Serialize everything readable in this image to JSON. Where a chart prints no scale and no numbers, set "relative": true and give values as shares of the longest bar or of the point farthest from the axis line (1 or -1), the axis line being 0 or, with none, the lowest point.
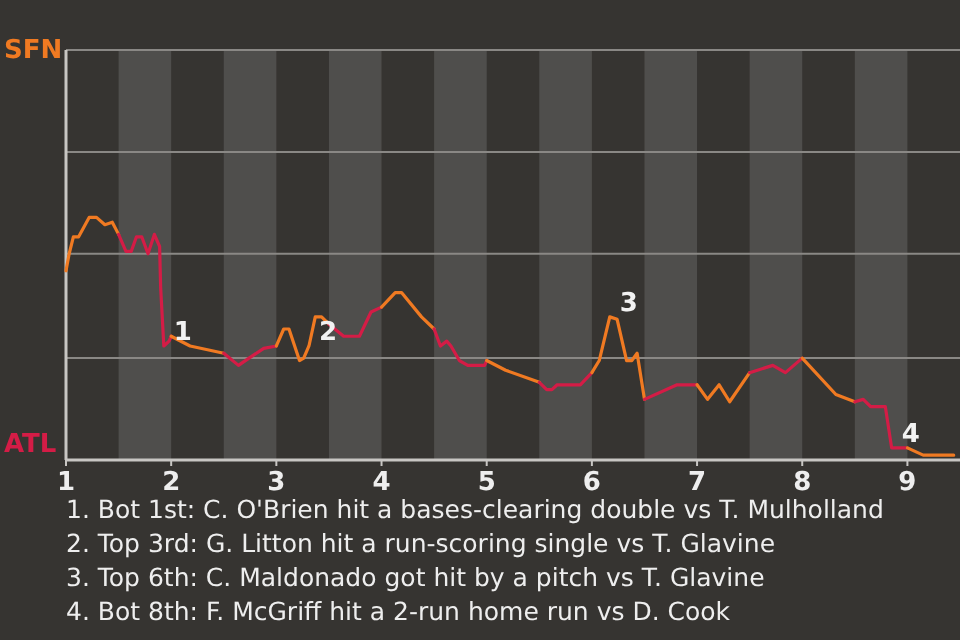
{
  "chart_data": {
    "type": "line",
    "relative": true,
    "xlim": [
      1,
      9.5
    ],
    "xticks": [
      1,
      2,
      3,
      4,
      5,
      6,
      7,
      8,
      9
    ],
    "marker": "none",
    "line_style": "solid",
    "ref_lines": [
      {
        "axis": "y",
        "value": 0.42,
        "color": "#8a8885"
      },
      {
        "axis": "y",
        "value": 0.85,
        "color": "#8a8885"
      },
      {
        "axis": "y",
        "value": 1.27,
        "color": "#8a8885"
      },
      {
        "axis": "y",
        "value": 1.69,
        "color": "#8a8885"
      }
    ],
    "bands": [
      {
        "axis": "x",
        "from": 1.5,
        "to": 2,
        "color": "#4f4e4c"
      },
      {
        "axis": "x",
        "from": 2.5,
        "to": 3,
        "color": "#4f4e4c"
      },
      {
        "axis": "x",
        "from": 3.5,
        "to": 4,
        "color": "#4f4e4c"
      },
      {
        "axis": "x",
        "from": 4.5,
        "to": 5,
        "color": "#4f4e4c"
      },
      {
        "axis": "x",
        "from": 5.5,
        "to": 6,
        "color": "#4f4e4c"
      },
      {
        "axis": "x",
        "from": 6.5,
        "to": 7,
        "color": "#4f4e4c"
      },
      {
        "axis": "x",
        "from": 7.5,
        "to": 8,
        "color": "#4f4e4c"
      },
      {
        "axis": "x",
        "from": 8.5,
        "to": 9,
        "color": "#4f4e4c"
      }
    ],
    "series": [
      {
        "color": "#f07a22",
        "x": [
          1,
          1.03,
          1.07,
          1.12,
          1.22,
          1.29,
          1.37,
          1.44,
          1.5
        ],
        "values": [
          0.78,
          0.85,
          0.92,
          0.92,
          1,
          1,
          0.97,
          0.98,
          0.93
        ]
      },
      {
        "color": "#d41c46",
        "x": [
          1.5,
          1.57,
          1.62,
          1.67,
          1.72,
          1.78,
          1.84,
          1.89,
          1.9,
          1.93,
          1.98,
          2
        ],
        "values": [
          0.93,
          0.86,
          0.86,
          0.92,
          0.92,
          0.85,
          0.93,
          0.88,
          0.71,
          0.47,
          0.49,
          0.51
        ]
      },
      {
        "color": "#f07a22",
        "x": [
          2,
          2.18,
          2.5
        ],
        "values": [
          0.51,
          0.47,
          0.44
        ]
      },
      {
        "color": "#d41c46",
        "x": [
          2.5,
          2.64,
          2.74,
          2.88,
          3
        ],
        "values": [
          0.44,
          0.39,
          0.42,
          0.46,
          0.47
        ]
      },
      {
        "color": "#f07a22",
        "x": [
          3,
          3.07,
          3.12,
          3.22,
          3.26,
          3.31,
          3.37,
          3.43,
          3.5
        ],
        "values": [
          0.47,
          0.54,
          0.54,
          0.41,
          0.42,
          0.47,
          0.59,
          0.59,
          0.56
        ]
      },
      {
        "color": "#d41c46",
        "x": [
          3.5,
          3.64,
          3.79,
          3.9,
          4
        ],
        "values": [
          0.56,
          0.51,
          0.51,
          0.61,
          0.63
        ]
      },
      {
        "color": "#f07a22",
        "x": [
          4,
          4.13,
          4.19,
          4.38,
          4.5
        ],
        "values": [
          0.63,
          0.69,
          0.69,
          0.59,
          0.54
        ]
      },
      {
        "color": "#d41c46",
        "x": [
          4.5,
          4.56,
          4.62,
          4.66,
          4.74,
          4.82,
          4.98,
          5
        ],
        "values": [
          0.54,
          0.47,
          0.49,
          0.47,
          0.41,
          0.39,
          0.39,
          0.41
        ]
      },
      {
        "color": "#f07a22",
        "x": [
          5,
          5.18,
          5.5
        ],
        "values": [
          0.41,
          0.37,
          0.32
        ]
      },
      {
        "color": "#d41c46",
        "x": [
          5.5,
          5.57,
          5.62,
          5.67,
          5.89,
          6
        ],
        "values": [
          0.32,
          0.29,
          0.29,
          0.31,
          0.31,
          0.36
        ]
      },
      {
        "color": "#f07a22",
        "x": [
          6,
          6.07,
          6.17,
          6.24,
          6.33,
          6.38,
          6.43,
          6.5
        ],
        "values": [
          0.36,
          0.41,
          0.59,
          0.58,
          0.41,
          0.41,
          0.44,
          0.25
        ]
      },
      {
        "color": "#d41c46",
        "x": [
          6.5,
          6.81,
          7
        ],
        "values": [
          0.25,
          0.31,
          0.31
        ]
      },
      {
        "color": "#f07a22",
        "x": [
          7,
          7.1,
          7.21,
          7.31,
          7.5
        ],
        "values": [
          0.31,
          0.25,
          0.31,
          0.24,
          0.36
        ]
      },
      {
        "color": "#d41c46",
        "x": [
          7.5,
          7.72,
          7.84,
          8
        ],
        "values": [
          0.36,
          0.39,
          0.36,
          0.42
        ]
      },
      {
        "color": "#f07a22",
        "x": [
          8,
          8.32,
          8.5
        ],
        "values": [
          0.42,
          0.27,
          0.24
        ]
      },
      {
        "color": "#d41c46",
        "x": [
          8.5,
          8.58,
          8.65,
          8.79,
          8.85,
          9
        ],
        "values": [
          0.24,
          0.25,
          0.22,
          0.22,
          0.05,
          0.05
        ]
      },
      {
        "color": "#f07a22",
        "x": [
          9,
          9.15,
          9.29,
          9.44
        ],
        "values": [
          0.05,
          0.02,
          0.02,
          0.02
        ]
      }
    ],
    "annotations": [
      {
        "text": "1",
        "x": 1.93,
        "y": 0.47
      },
      {
        "text": "2",
        "x": 3.31,
        "y": 0.47
      },
      {
        "text": "3",
        "x": 6.17,
        "y": 0.59
      },
      {
        "text": "4",
        "x": 8.85,
        "y": 0.05
      },
      "SFN",
      "ATL",
      "1. Bot 1st: C. O'Brien hit a bases-clearing double vs T. Mulholland",
      "2. Top 3rd: G. Litton hit a run-scoring single vs T. Glavine",
      "3. Top 6th: C. Maldonado got hit by a pitch vs T. Glavine",
      "4. Bot 8th: F. McGriff hit a 2-run home run vs D. Cook"
    ]
  }
}
